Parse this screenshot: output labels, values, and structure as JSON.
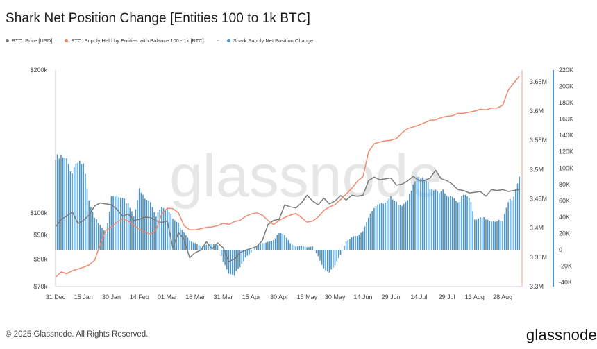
{
  "title": "Shark Net Position Change [Entities 100 to 1k BTC]",
  "legend": [
    {
      "label": "BTC: Price [USD]",
      "color": "#7a7a7a"
    },
    {
      "label": "BTC: Supply Held by Entities with Balance 100 - 1k [BTC]",
      "color": "#f08a6c"
    },
    {
      "label": "Shark Supply Net Position Change",
      "color": "#4a96cc"
    }
  ],
  "watermark": "glassnode",
  "footer": "© 2025 Glassnode. All Rights Reserved.",
  "brand": "glassnode",
  "chart_data": {
    "type": "line",
    "x_ticks": [
      "31 Dec",
      "15 Jan",
      "30 Jan",
      "14 Feb",
      "01 Mar",
      "16 Mar",
      "31 Mar",
      "15 Apr",
      "30 Apr",
      "15 May",
      "30 May",
      "14 Jun",
      "29 Jun",
      "14 Jul",
      "29 Jul",
      "13 Aug",
      "28 Aug"
    ],
    "x_range_days": [
      0,
      250
    ],
    "left_axis": {
      "ticks": [
        "$70k",
        "$80k",
        "$90k",
        "$100k",
        "$200k"
      ],
      "tick_values": [
        70000,
        80000,
        90000,
        100000,
        200000
      ],
      "scale": "log",
      "range": [
        70000,
        200000
      ]
    },
    "right_axis_supply": {
      "ticks": [
        "3.3M",
        "3.35M",
        "3.4M",
        "3.45M",
        "3.5M",
        "3.55M",
        "3.6M",
        "3.65M"
      ],
      "range": [
        3.3,
        3.67
      ]
    },
    "right_axis_change": {
      "ticks": [
        "-40K",
        "-20K",
        "0",
        "20K",
        "40K",
        "60K",
        "80K",
        "100K",
        "120K",
        "140K",
        "160K",
        "180K",
        "200K",
        "220K"
      ],
      "range": [
        -45000,
        220000
      ]
    },
    "series": [
      {
        "name": "BTC: Price [USD]",
        "axis": "left",
        "color": "#7a7a7a",
        "x": [
          0,
          3,
          6,
          9,
          12,
          15,
          18,
          21,
          24,
          27,
          30,
          33,
          36,
          39,
          42,
          45,
          48,
          51,
          54,
          57,
          60,
          63,
          66,
          69,
          72,
          75,
          78,
          81,
          84,
          87,
          90,
          93,
          96,
          99,
          102,
          105,
          108,
          111,
          114,
          117,
          120,
          123,
          126,
          129,
          132,
          135,
          138,
          141,
          144,
          147,
          150,
          153,
          156,
          159,
          162,
          165,
          168,
          171,
          174,
          177,
          180,
          183,
          186,
          189,
          192,
          195,
          198,
          201,
          204,
          207,
          210,
          213,
          216,
          219,
          222,
          225,
          228,
          231,
          234,
          237,
          240,
          243,
          246,
          249
        ],
        "y": [
          93500,
          97000,
          98500,
          100500,
          95000,
          96500,
          99000,
          103500,
          105000,
          104500,
          104000,
          101800,
          98500,
          99500,
          96500,
          97000,
          98000,
          97800,
          96300,
          95500,
          96200,
          84400,
          91000,
          88000,
          80500,
          82500,
          83500,
          87000,
          84000,
          86500,
          84400,
          79000,
          80000,
          82500,
          83500,
          84200,
          85000,
          87500,
          94500,
          96500,
          97000,
          104000,
          103000,
          102500,
          105000,
          109000,
          106000,
          104000,
          107500,
          104500,
          106000,
          108800,
          106500,
          109000,
          108500,
          109000,
          117000,
          119000,
          117500,
          118000,
          118500,
          114500,
          115000,
          116800,
          119500,
          117000,
          117000,
          118500,
          123000,
          118000,
          117000,
          115000,
          112000,
          111500,
          110200,
          110500,
          111000,
          108500,
          112000,
          111500,
          112000,
          111000,
          111500,
          112000
        ]
      },
      {
        "name": "BTC: Supply Held by Entities with Balance 100 - 1k [BTC]",
        "axis": "right_supply",
        "color": "#f08a6c",
        "x": [
          0,
          3,
          6,
          9,
          12,
          15,
          18,
          21,
          24,
          27,
          30,
          33,
          36,
          39,
          42,
          45,
          48,
          51,
          54,
          57,
          60,
          63,
          66,
          69,
          72,
          75,
          78,
          81,
          84,
          87,
          90,
          93,
          96,
          99,
          102,
          105,
          108,
          111,
          114,
          117,
          120,
          123,
          126,
          129,
          132,
          135,
          138,
          141,
          144,
          147,
          150,
          153,
          156,
          159,
          162,
          165,
          168,
          171,
          174,
          177,
          180,
          183,
          186,
          189,
          192,
          195,
          198,
          201,
          204,
          207,
          210,
          213,
          216,
          219,
          222,
          225,
          228,
          231,
          234,
          237,
          240,
          243,
          246,
          249
        ],
        "y": [
          3.316,
          3.325,
          3.322,
          3.327,
          3.33,
          3.333,
          3.337,
          3.345,
          3.372,
          3.396,
          3.402,
          3.41,
          3.416,
          3.412,
          3.405,
          3.398,
          3.393,
          3.39,
          3.397,
          3.424,
          3.434,
          3.433,
          3.426,
          3.404,
          3.397,
          3.397,
          3.399,
          3.401,
          3.402,
          3.404,
          3.408,
          3.406,
          3.411,
          3.413,
          3.42,
          3.424,
          3.426,
          3.422,
          3.413,
          3.406,
          3.413,
          3.418,
          3.422,
          3.425,
          3.418,
          3.41,
          3.412,
          3.419,
          3.43,
          3.436,
          3.44,
          3.449,
          3.458,
          3.468,
          3.48,
          3.488,
          3.53,
          3.544,
          3.547,
          3.549,
          3.55,
          3.553,
          3.563,
          3.57,
          3.573,
          3.576,
          3.58,
          3.584,
          3.585,
          3.589,
          3.591,
          3.592,
          3.596,
          3.596,
          3.598,
          3.6,
          3.603,
          3.602,
          3.605,
          3.605,
          3.61,
          3.636,
          3.648,
          3.66
        ]
      },
      {
        "name": "Shark Supply Net Position Change",
        "axis": "right_change",
        "color": "#4a96cc",
        "kind": "bar",
        "x": [
          0,
          3,
          6,
          9,
          12,
          15,
          18,
          21,
          24,
          27,
          30,
          33,
          36,
          39,
          42,
          45,
          48,
          51,
          54,
          57,
          60,
          63,
          66,
          69,
          72,
          75,
          78,
          81,
          84,
          87,
          90,
          93,
          96,
          99,
          102,
          105,
          108,
          111,
          114,
          117,
          120,
          123,
          126,
          129,
          132,
          135,
          138,
          141,
          144,
          147,
          150,
          153,
          156,
          159,
          162,
          165,
          168,
          171,
          174,
          177,
          180,
          183,
          186,
          189,
          192,
          195,
          198,
          201,
          204,
          207,
          210,
          213,
          216,
          219,
          222,
          225,
          228,
          231,
          234,
          237,
          240,
          243,
          246,
          249
        ],
        "y": [
          110000,
          112000,
          108000,
          96000,
          112000,
          103000,
          58000,
          38000,
          32000,
          21000,
          62000,
          65000,
          60000,
          58000,
          42000,
          72000,
          62000,
          58000,
          42000,
          55000,
          50000,
          38000,
          32000,
          22000,
          12000,
          8000,
          4000,
          6000,
          8000,
          6000,
          -14000,
          -28000,
          -30000,
          -22000,
          -10000,
          -3000,
          4000,
          8000,
          10000,
          12000,
          20000,
          18000,
          8000,
          4000,
          5000,
          3000,
          4000,
          -8000,
          -24000,
          -28000,
          -18000,
          -6000,
          10000,
          16000,
          18000,
          22000,
          38000,
          52000,
          58000,
          60000,
          62000,
          56000,
          54000,
          64000,
          82000,
          86000,
          84000,
          78000,
          74000,
          72000,
          65000,
          62000,
          58000,
          70000,
          66000,
          36000,
          38000,
          38000,
          36000,
          36000,
          34000,
          58000,
          66000,
          92000
        ]
      }
    ]
  }
}
